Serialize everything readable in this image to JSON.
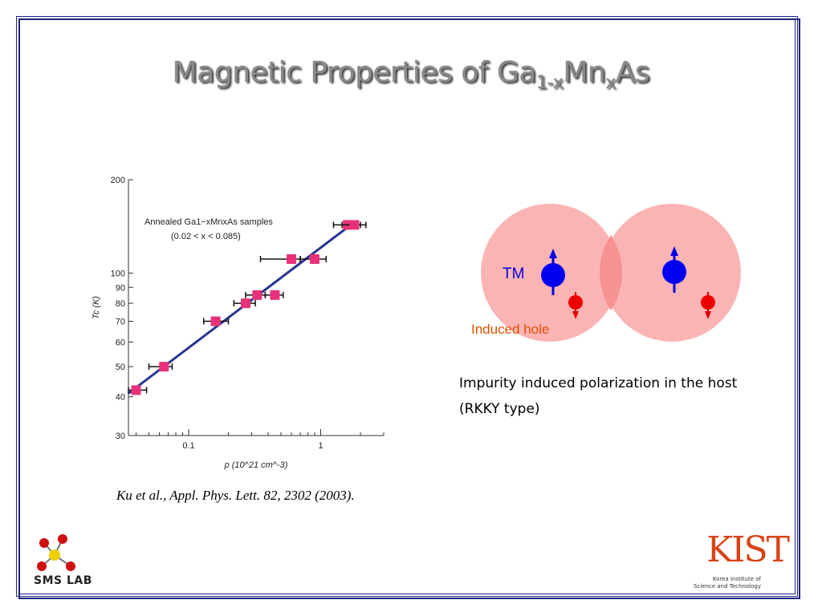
{
  "slide": {
    "title_main": "Magnetic Properties of Ga",
    "title_sub1": "1-x",
    "title_mid": "Mn",
    "title_sub2": "x",
    "title_end": "As",
    "citation": "Ku et al., Appl. Phys. Lett. 82, 2302 (2003).",
    "caption_line1": "Impurity induced polarization in the host",
    "caption_line2": "(RKKY type)",
    "colors": {
      "frame": "#1a237e",
      "hole": "#e00000",
      "tm": "#0000e0",
      "sphere": "#f8a8a8",
      "marker": "#e8317a",
      "fit_line": "#2a3590"
    }
  },
  "diagram": {
    "tm_label": "TM",
    "hole_label": "Induced hole"
  },
  "logos": {
    "sms_label": "SMS LAB",
    "kist_mark": "KIST",
    "kist_name_line1": "Korea Institute of",
    "kist_name_line2": "Science and Technology"
  },
  "chart_data": {
    "type": "scatter",
    "x_scale": "log",
    "y_scale": "log",
    "xlim": [
      0.035,
      3
    ],
    "ylim": [
      30,
      200
    ],
    "x_ticks": [
      0.1,
      1
    ],
    "x_tick_labels": [
      "0.1",
      "1"
    ],
    "y_ticks": [
      30,
      40,
      50,
      60,
      70,
      80,
      90,
      100,
      200
    ],
    "y_tick_labels": [
      "30",
      "40",
      "50",
      "60",
      "70",
      "80",
      "90",
      "100",
      "200"
    ],
    "xlabel": "p (10^21 cm^-3)",
    "ylabel": "Tc (K)",
    "annotation_line1": "Annealed Ga1−xMnxAs samples",
    "annotation_line2": "(0.02 < x < 0.085)",
    "fit_line": {
      "x": [
        0.035,
        1.8
      ],
      "y": [
        41,
        146
      ]
    },
    "points": [
      {
        "x": 0.04,
        "y": 42,
        "xerr": [
          0.035,
          0.048
        ]
      },
      {
        "x": 0.065,
        "y": 50,
        "xerr": [
          0.05,
          0.075
        ]
      },
      {
        "x": 0.16,
        "y": 70,
        "xerr": [
          0.13,
          0.2
        ]
      },
      {
        "x": 0.27,
        "y": 80,
        "xerr": [
          0.22,
          0.32
        ]
      },
      {
        "x": 0.33,
        "y": 85,
        "xerr": [
          0.27,
          0.38
        ]
      },
      {
        "x": 0.45,
        "y": 85,
        "xerr": [
          0.38,
          0.52
        ]
      },
      {
        "x": 0.6,
        "y": 111,
        "xerr": [
          0.35,
          0.7
        ]
      },
      {
        "x": 0.9,
        "y": 111,
        "xerr": [
          0.7,
          1.1
        ]
      },
      {
        "x": 1.6,
        "y": 143,
        "xerr": [
          1.25,
          2.0
        ]
      },
      {
        "x": 1.8,
        "y": 143,
        "xerr": [
          1.45,
          2.2
        ]
      }
    ]
  }
}
